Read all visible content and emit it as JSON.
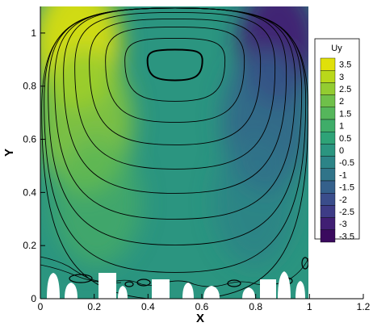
{
  "chart_data": {
    "type": "heatmap",
    "xlabel": "X",
    "ylabel": "Y",
    "xlim": [
      0,
      1.2
    ],
    "ylim": [
      0,
      1.1
    ],
    "x_ticks": [
      "0",
      "0.2",
      "0.4",
      "0.6",
      "0.8",
      "1",
      "1.2"
    ],
    "x_tick_values": [
      0,
      0.2,
      0.4,
      0.6,
      0.8,
      1.0,
      1.2
    ],
    "y_ticks": [
      "0",
      "0.2",
      "0.4",
      "0.6",
      "0.8",
      "1"
    ],
    "y_tick_values": [
      0,
      0.2,
      0.4,
      0.6,
      0.8,
      1.0
    ],
    "domain_x": [
      0,
      1
    ],
    "domain_y": [
      0,
      1.1
    ],
    "colorbar": {
      "title": "Uy",
      "levels": [
        "3.5",
        "3",
        "2.5",
        "2",
        "1.5",
        "1",
        "0.5",
        "0",
        "-0.5",
        "-1",
        "-1.5",
        "-2",
        "-2.5",
        "-3",
        "-3.5"
      ],
      "colors": [
        "#e0e00a",
        "#b9d81a",
        "#93cc31",
        "#6fc04a",
        "#55b65b",
        "#3fad69",
        "#2ea377",
        "#2b9580",
        "#2c8487",
        "#307489",
        "#34608b",
        "#3a4d8b",
        "#3e3c86",
        "#401f73",
        "#3a0a5e"
      ]
    },
    "background_color": "#2b9580",
    "contour_color": "#000000",
    "vortex_center": [
      0.5,
      0.895
    ]
  }
}
